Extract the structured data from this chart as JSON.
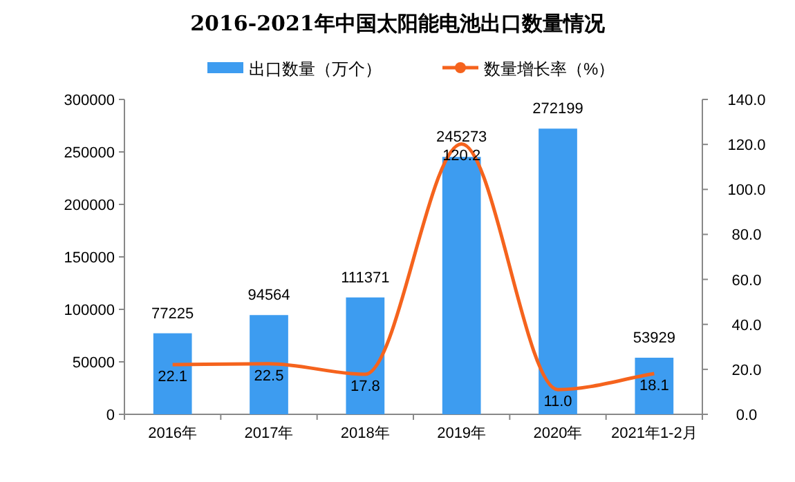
{
  "chart_data": {
    "type": "bar",
    "title": "2016-2021年中国太阳能电池出口数量情况",
    "categories": [
      "2016年",
      "2017年",
      "2018年",
      "2019年",
      "2020年",
      "2021年1-2月"
    ],
    "series": [
      {
        "name": "出口数量（万个）",
        "color": "#3d9cf0",
        "values": [
          77225,
          94564,
          111371,
          245273,
          272199,
          53929
        ]
      },
      {
        "name": "数量增长率（%）",
        "type": "line",
        "axis": "y2",
        "color": "#f5631d",
        "values": [
          22.1,
          22.5,
          17.8,
          120.2,
          11.0,
          18.1
        ],
        "value_labels": [
          "22.1",
          "22.5",
          "17.8",
          "120.2",
          "11.0",
          "18.1"
        ]
      }
    ],
    "ylim": [
      0,
      300000
    ],
    "yticks": [
      0,
      50000,
      100000,
      150000,
      200000,
      250000,
      300000
    ],
    "y2lim": [
      0,
      140
    ],
    "y2ticks": [
      {
        "value": 0,
        "label": "0.0"
      },
      {
        "value": 20,
        "label": "20.0"
      },
      {
        "value": 40,
        "label": "40.0"
      },
      {
        "value": 60,
        "label": "60.0"
      },
      {
        "value": 80,
        "label": "80.0"
      },
      {
        "value": 100,
        "label": "100.0"
      },
      {
        "value": 120,
        "label": "120.0"
      },
      {
        "value": 140,
        "label": "140.0"
      }
    ],
    "data_labels": true,
    "legend": "top",
    "grid": false
  }
}
